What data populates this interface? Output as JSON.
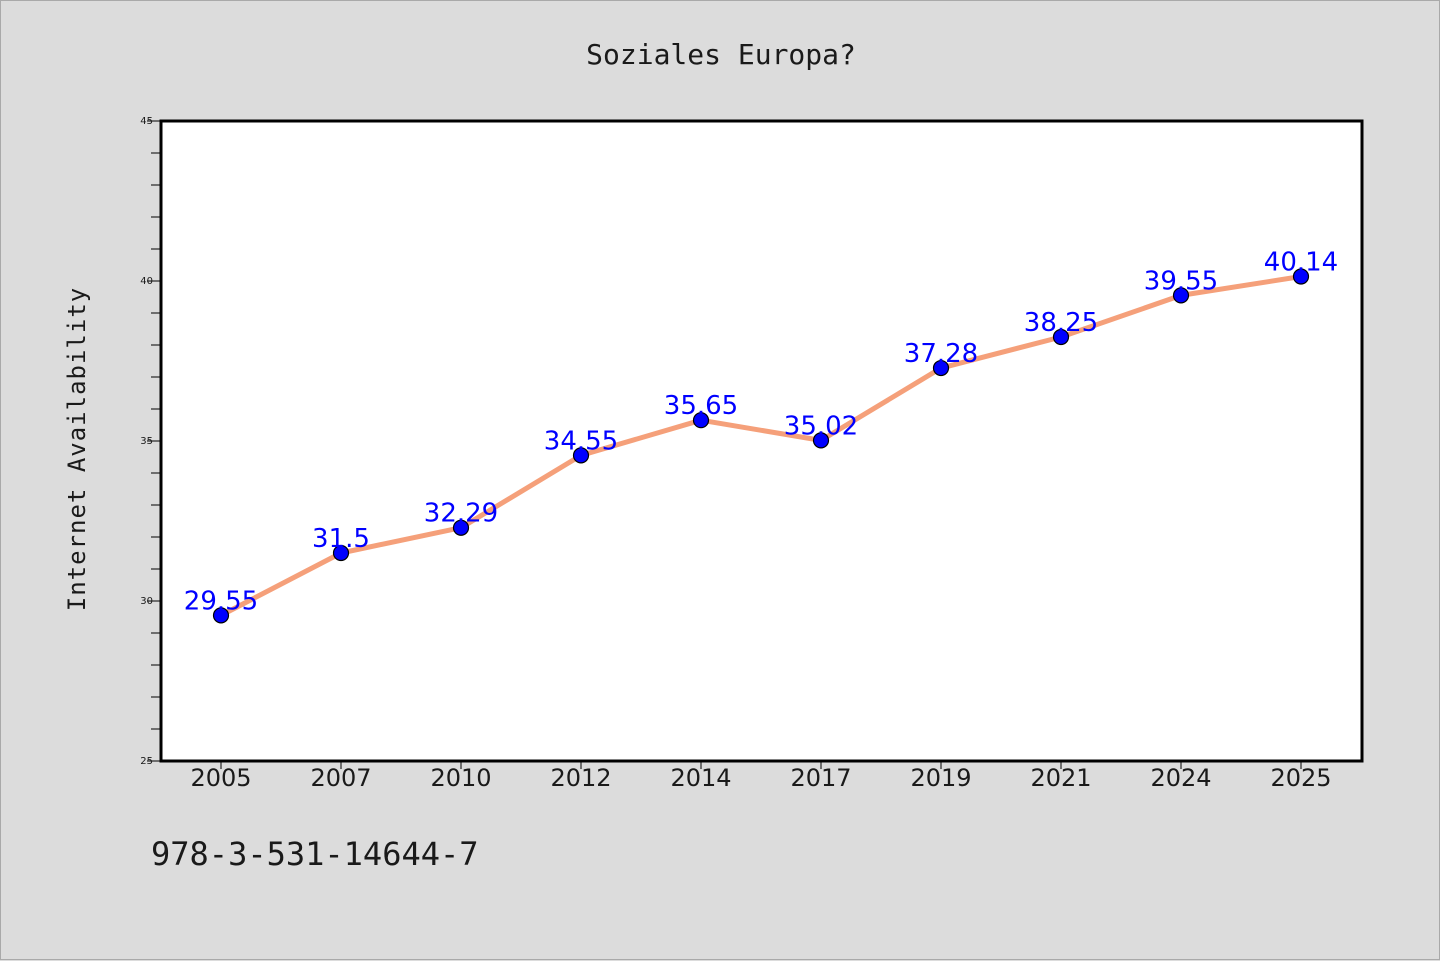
{
  "chart_data": {
    "type": "line",
    "title": "Soziales Europa?",
    "xlabel": "",
    "ylabel": "Internet Availability",
    "categories": [
      "2005",
      "2007",
      "2010",
      "2012",
      "2014",
      "2017",
      "2019",
      "2021",
      "2024",
      "2025"
    ],
    "series": [
      {
        "values": [
          29.55,
          31.5,
          32.29,
          34.55,
          35.65,
          35.02,
          37.28,
          38.25,
          39.55,
          40.14
        ],
        "data_labels": [
          "29.55",
          "31.5",
          "32.29",
          "34.55",
          "35.65",
          "35.02",
          "37.28",
          "38.25",
          "39.55",
          "40.14"
        ]
      }
    ],
    "ylim": [
      25,
      45
    ],
    "yticks": [
      "25",
      "30",
      "35",
      "40",
      "45"
    ],
    "grid": false,
    "legend": "none",
    "colors": {
      "line": "#f5a07a",
      "marker": "#0000ff",
      "data_label": "#0000ff",
      "background": "#dcdcdc",
      "plot_background": "#ffffff"
    }
  },
  "footnote": "978-3-531-14644-7"
}
